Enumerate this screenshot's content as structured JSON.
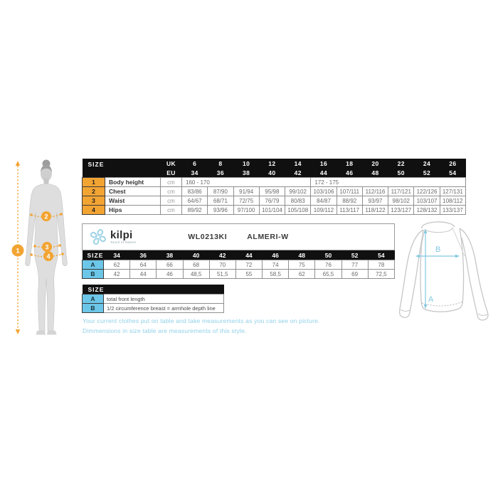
{
  "brand": {
    "name": "kilpi",
    "tagline": "Touch of Nature"
  },
  "product": {
    "code": "WL0213KI",
    "name": "ALMERI-W"
  },
  "colors": {
    "header_black": "#101010",
    "accent_orange": "#F2A433",
    "accent_blue": "#6CC6E8",
    "caption_blue": "#8FD0E8",
    "arrow_blue": "#84c8e0"
  },
  "body_table": {
    "header_label": "SIZE",
    "uk_label": "UK",
    "eu_label": "EU",
    "uk_sizes": [
      "6",
      "8",
      "10",
      "12",
      "14",
      "16",
      "18",
      "20",
      "22",
      "24",
      "26"
    ],
    "eu_sizes": [
      "34",
      "36",
      "38",
      "40",
      "42",
      "44",
      "46",
      "48",
      "50",
      "52",
      "54"
    ],
    "rows": [
      {
        "num": "1",
        "label": "Body height",
        "unit": "cm",
        "spans": [
          5,
          6
        ],
        "values": [
          "160 - 170",
          "172 - 175"
        ]
      },
      {
        "num": "2",
        "label": "Chest",
        "unit": "cm",
        "values": [
          "83/86",
          "87/90",
          "91/94",
          "95/98",
          "99/102",
          "103/106",
          "107/111",
          "112/116",
          "117/121",
          "122/126",
          "127/131"
        ]
      },
      {
        "num": "3",
        "label": "Waist",
        "unit": "cm",
        "values": [
          "64/67",
          "68/71",
          "72/75",
          "76/79",
          "80/83",
          "84/87",
          "88/92",
          "93/97",
          "98/102",
          "103/107",
          "108/112"
        ]
      },
      {
        "num": "4",
        "label": "Hips",
        "unit": "cm",
        "values": [
          "89/92",
          "93/96",
          "97/100",
          "101/104",
          "105/108",
          "109/112",
          "113/117",
          "118/122",
          "123/127",
          "128/132",
          "133/137"
        ]
      }
    ]
  },
  "product_table": {
    "size_label": "SIZE",
    "sizes": [
      "34",
      "36",
      "38",
      "40",
      "42",
      "44",
      "46",
      "48",
      "50",
      "52",
      "54"
    ],
    "rows": [
      {
        "key": "A",
        "values": [
          "62",
          "64",
          "66",
          "68",
          "70",
          "72",
          "74",
          "75",
          "76",
          "77",
          "78"
        ]
      },
      {
        "key": "B",
        "values": [
          "42",
          "44",
          "46",
          "48,5",
          "51,5",
          "55",
          "58,5",
          "62",
          "65,5",
          "69",
          "72,5"
        ]
      }
    ]
  },
  "legend_table": {
    "size_label": "SIZE",
    "rows": [
      {
        "key": "A",
        "description": "total front length"
      },
      {
        "key": "B",
        "description": "1/2 circumference breast = armhole depth line"
      }
    ]
  },
  "notes": {
    "line1": "Your current clothes put on table and take measurements as you can see on picture.",
    "line2": "Dimmensions in size table are measurements of this style."
  },
  "figure": {
    "markers": [
      "1",
      "2",
      "3",
      "4"
    ]
  },
  "shirt": {
    "label_a": "A",
    "label_b": "B"
  }
}
